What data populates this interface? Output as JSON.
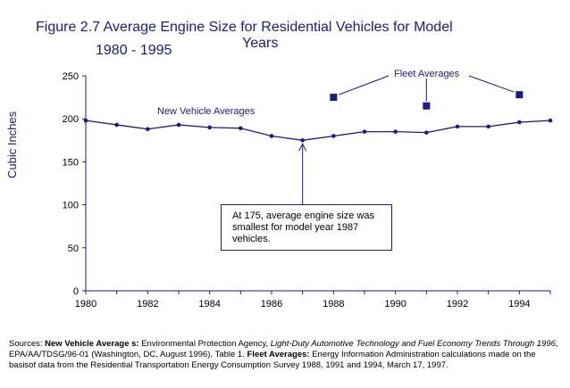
{
  "title": {
    "line1": "Figure 2.7  Average Engine Size for Residential Vehicles for Model",
    "line2": "Years",
    "line3": "1980 - 1995"
  },
  "chart_data": {
    "type": "line",
    "ylabel": "Cubic Inches",
    "xlabel": "",
    "xlim": [
      1980,
      1995
    ],
    "ylim": [
      0,
      250
    ],
    "x_ticks": [
      1980,
      1982,
      1984,
      1986,
      1988,
      1990,
      1992,
      1994
    ],
    "y_ticks": [
      0,
      50,
      100,
      150,
      200,
      250
    ],
    "grid": false,
    "series": [
      {
        "name": "New Vehicle Averages",
        "x": [
          1980,
          1981,
          1982,
          1983,
          1984,
          1985,
          1986,
          1987,
          1988,
          1989,
          1990,
          1991,
          1992,
          1993,
          1994,
          1995
        ],
        "values": [
          198,
          193,
          188,
          193,
          190,
          189,
          180,
          175,
          180,
          185,
          185,
          184,
          191,
          191,
          196,
          198
        ]
      },
      {
        "name": "Fleet Averages",
        "x": [
          1988,
          1991,
          1994
        ],
        "values": [
          225,
          215,
          228
        ]
      }
    ],
    "annotations": {
      "new_vehicle_label": "New Vehicle Averages",
      "fleet_label": "Fleet Averages",
      "callout": "At 175, average engine size was smallest for model year 1987 vehicles."
    },
    "colors": {
      "line": "#1a1a8c",
      "text": "#1a1a8c"
    }
  },
  "sources": {
    "prefix": "Sources: ",
    "nva_label": "New Vehicle Average s:",
    "nva_text1": "  Environmental Protection Agency, ",
    "nva_italic": "Light-Duty Automotive Technology and Fuel Economy Trends Through 1996",
    "nva_text2": ", EPA/AA/TDSG/96-01 (Washington, DC, August 1996), Table 1.  ",
    "fleet_label": "Fleet Averages:",
    "fleet_text": "  Energy Information Administration calculations made on the basisof data from the Residential Transportation Energy Consumption Survey 1988, 1991 and 1994, March 17, 1997."
  }
}
